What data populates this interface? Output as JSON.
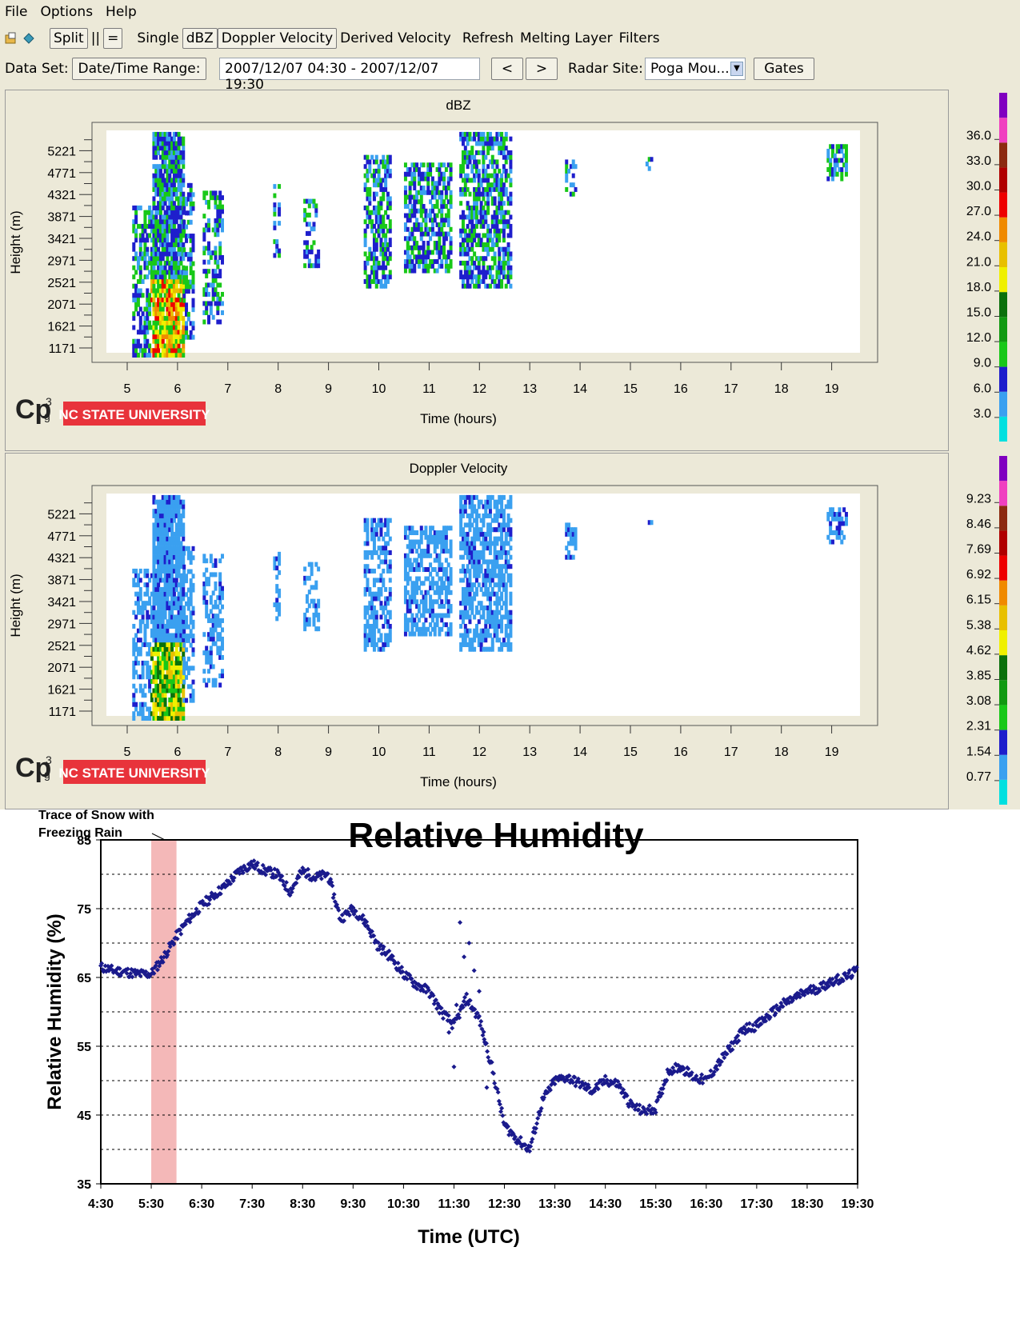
{
  "menu": [
    "File",
    "Options",
    "Help"
  ],
  "toolbar": {
    "split": "Split",
    "vertical": "||",
    "horizontal": "=",
    "single": "Single",
    "dbz": "dBZ",
    "doppler": "Doppler Velocity",
    "derived": "Derived Velocity",
    "refresh": "Refresh",
    "melting": "Melting Layer",
    "filters": "Filters"
  },
  "dataset": {
    "label": "Data Set:",
    "range_button": "Date/Time Range:",
    "range_value": "2007/12/07 04:30 - 2007/12/07 19:30",
    "prev": "<",
    "next": ">",
    "radar_label": "Radar Site:",
    "radar_value": "Poga Mou...",
    "gates": "Gates"
  },
  "panels": [
    {
      "title": "dBZ",
      "ylabel": "Height (m)",
      "xlabel": "Time (hours)",
      "yticks": [
        "5221",
        "4771",
        "4321",
        "3871",
        "3421",
        "2971",
        "2521",
        "2071",
        "1621",
        "1171"
      ],
      "xticks": [
        "5",
        "6",
        "7",
        "8",
        "9",
        "10",
        "11",
        "12",
        "13",
        "14",
        "15",
        "16",
        "17",
        "18",
        "19"
      ],
      "scale": [
        "36.0",
        "33.0",
        "30.0",
        "27.0",
        "24.0",
        "21.0",
        "18.0",
        "15.0",
        "12.0",
        "9.0",
        "6.0",
        "3.0"
      ]
    },
    {
      "title": "Doppler Velocity",
      "ylabel": "Height (m)",
      "xlabel": "Time (hours)",
      "yticks": [
        "5221",
        "4771",
        "4321",
        "3871",
        "3421",
        "2971",
        "2521",
        "2071",
        "1621",
        "1171"
      ],
      "xticks": [
        "5",
        "6",
        "7",
        "8",
        "9",
        "10",
        "11",
        "12",
        "13",
        "14",
        "15",
        "16",
        "17",
        "18",
        "19"
      ],
      "scale": [
        "9.23",
        "8.46",
        "7.69",
        "6.92",
        "6.15",
        "5.38",
        "4.62",
        "3.85",
        "3.08",
        "2.31",
        "1.54",
        "0.77"
      ]
    }
  ],
  "colorbar_colors": [
    "#00e0e0",
    "#3aa0f0",
    "#1e1ecc",
    "#18c818",
    "#119911",
    "#0b700b",
    "#f0f000",
    "#e8c000",
    "#f08a00",
    "#ee0000",
    "#b00000",
    "#8c2a10",
    "#f040c0",
    "#8000c0"
  ],
  "logo": {
    "mark": "CPg3",
    "org": "NC STATE UNIVERSITY"
  },
  "rh_chart": {
    "title": "Relative Humidity",
    "annotation": [
      "Trace of Snow with",
      "Freezing Rain"
    ],
    "marker_color": "#1a1a8c",
    "highlight_color": "#f4b8b8"
  },
  "chart_data": {
    "type": "scatter",
    "title": "Relative Humidity",
    "xlabel": "Time (UTC)",
    "ylabel": "Relative Humidity (%)",
    "ylim": [
      35,
      85
    ],
    "yticks": [
      35,
      45,
      55,
      65,
      75,
      85
    ],
    "xticks": [
      "4:30",
      "5:30",
      "6:30",
      "7:30",
      "8:30",
      "9:30",
      "10:30",
      "11:30",
      "12:30",
      "13:30",
      "14:30",
      "15:30",
      "16:30",
      "17:30",
      "18:30",
      "19:30"
    ],
    "xlim_hours": [
      4.5,
      19.5
    ],
    "grid": "horizontal dotted every 5",
    "shaded_interval_hours": [
      5.5,
      6.0
    ],
    "series": [
      {
        "x_hours": [
          4.5,
          4.75,
          5.0,
          5.25,
          5.5,
          5.75,
          6.0,
          6.25,
          6.5,
          6.75,
          7.0,
          7.25,
          7.5,
          7.75,
          8.0,
          8.25,
          8.5,
          8.75,
          9.0,
          9.25,
          9.5,
          9.75,
          10.0,
          10.25,
          10.5,
          10.75,
          11.0,
          11.25,
          11.5,
          11.75,
          12.0,
          12.25,
          12.5,
          12.75,
          13.0,
          13.25,
          13.5,
          13.75,
          14.0,
          14.25,
          14.5,
          14.75,
          15.0,
          15.25,
          15.5,
          15.75,
          16.0,
          16.25,
          16.5,
          16.75,
          17.0,
          17.25,
          17.5,
          17.75,
          18.0,
          18.25,
          18.5,
          18.75,
          19.0,
          19.25,
          19.5
        ],
        "values": [
          66.5,
          66.0,
          65.8,
          65.5,
          65.5,
          68.0,
          71.0,
          73.5,
          75.5,
          77.0,
          78.5,
          80.5,
          81.5,
          80.5,
          80.0,
          77.5,
          80.5,
          79.5,
          80.0,
          73.5,
          75.0,
          73.0,
          69.5,
          68.0,
          65.5,
          64.0,
          63.0,
          60.0,
          58.0,
          62.0,
          59.0,
          52.0,
          43.5,
          41.5,
          40.0,
          47.0,
          50.0,
          50.5,
          49.5,
          48.5,
          50.0,
          49.5,
          46.5,
          45.5,
          46.0,
          51.5,
          52.0,
          50.5,
          50.0,
          52.5,
          55.0,
          57.5,
          58.0,
          59.5,
          61.0,
          62.0,
          63.0,
          63.5,
          64.5,
          65.0,
          66.0
        ]
      }
    ]
  }
}
